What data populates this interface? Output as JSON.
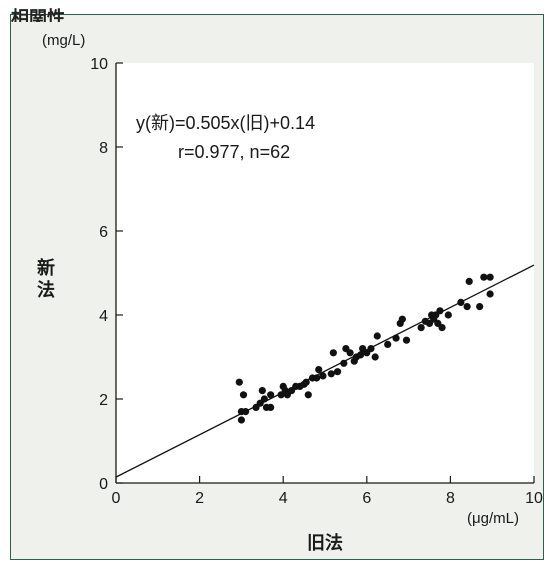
{
  "caption_partial": "相関性",
  "chart_data": {
    "type": "scatter",
    "xlabel": "旧法",
    "ylabel": "新法",
    "x_unit": "(μg/mL)",
    "y_unit": "(mg/L)",
    "xlim": [
      0,
      10
    ],
    "ylim": [
      0,
      10
    ],
    "xticks": [
      "0",
      "2",
      "4",
      "6",
      "8",
      "10"
    ],
    "yticks": [
      "0",
      "2",
      "4",
      "6",
      "8",
      "10"
    ],
    "grid": false,
    "annotations": [
      "y(新)=0.505x(旧)+0.14",
      "r=0.977, n=62"
    ],
    "regression": {
      "slope": 0.505,
      "intercept": 0.14
    },
    "point_color": "#111111",
    "line_color": "#111111",
    "points": [
      {
        "x": 2.95,
        "y": 2.4
      },
      {
        "x": 3.0,
        "y": 1.7
      },
      {
        "x": 3.0,
        "y": 1.5
      },
      {
        "x": 3.05,
        "y": 2.1
      },
      {
        "x": 3.1,
        "y": 1.7
      },
      {
        "x": 3.35,
        "y": 1.8
      },
      {
        "x": 3.5,
        "y": 2.2
      },
      {
        "x": 3.55,
        "y": 2.0
      },
      {
        "x": 3.6,
        "y": 1.8
      },
      {
        "x": 3.7,
        "y": 1.8
      },
      {
        "x": 3.7,
        "y": 2.1
      },
      {
        "x": 3.95,
        "y": 2.1
      },
      {
        "x": 4.0,
        "y": 2.3
      },
      {
        "x": 4.05,
        "y": 2.2
      },
      {
        "x": 4.1,
        "y": 2.1
      },
      {
        "x": 4.2,
        "y": 2.2
      },
      {
        "x": 4.3,
        "y": 2.3
      },
      {
        "x": 4.4,
        "y": 2.3
      },
      {
        "x": 4.5,
        "y": 2.35
      },
      {
        "x": 4.55,
        "y": 2.4
      },
      {
        "x": 4.6,
        "y": 2.1
      },
      {
        "x": 4.7,
        "y": 2.5
      },
      {
        "x": 4.8,
        "y": 2.5
      },
      {
        "x": 4.85,
        "y": 2.7
      },
      {
        "x": 4.95,
        "y": 2.55
      },
      {
        "x": 5.15,
        "y": 2.6
      },
      {
        "x": 5.2,
        "y": 3.1
      },
      {
        "x": 5.3,
        "y": 2.65
      },
      {
        "x": 5.45,
        "y": 2.85
      },
      {
        "x": 5.5,
        "y": 3.2
      },
      {
        "x": 5.6,
        "y": 3.1
      },
      {
        "x": 5.7,
        "y": 2.9
      },
      {
        "x": 5.75,
        "y": 3.0
      },
      {
        "x": 5.85,
        "y": 3.05
      },
      {
        "x": 5.9,
        "y": 3.2
      },
      {
        "x": 6.0,
        "y": 3.1
      },
      {
        "x": 6.1,
        "y": 3.2
      },
      {
        "x": 6.2,
        "y": 3.0
      },
      {
        "x": 6.25,
        "y": 3.5
      },
      {
        "x": 6.5,
        "y": 3.3
      },
      {
        "x": 6.7,
        "y": 3.45
      },
      {
        "x": 6.8,
        "y": 3.8
      },
      {
        "x": 6.85,
        "y": 3.9
      },
      {
        "x": 6.95,
        "y": 3.4
      },
      {
        "x": 7.3,
        "y": 3.7
      },
      {
        "x": 7.4,
        "y": 3.85
      },
      {
        "x": 7.5,
        "y": 3.8
      },
      {
        "x": 7.55,
        "y": 4.0
      },
      {
        "x": 7.6,
        "y": 3.9
      },
      {
        "x": 7.65,
        "y": 4.0
      },
      {
        "x": 7.7,
        "y": 3.8
      },
      {
        "x": 7.75,
        "y": 4.1
      },
      {
        "x": 7.8,
        "y": 3.7
      },
      {
        "x": 7.95,
        "y": 4.0
      },
      {
        "x": 8.25,
        "y": 4.3
      },
      {
        "x": 8.4,
        "y": 4.2
      },
      {
        "x": 8.45,
        "y": 4.8
      },
      {
        "x": 8.7,
        "y": 4.2
      },
      {
        "x": 8.8,
        "y": 4.9
      },
      {
        "x": 8.95,
        "y": 4.5
      },
      {
        "x": 8.95,
        "y": 4.9
      },
      {
        "x": 3.45,
        "y": 1.9
      }
    ]
  }
}
